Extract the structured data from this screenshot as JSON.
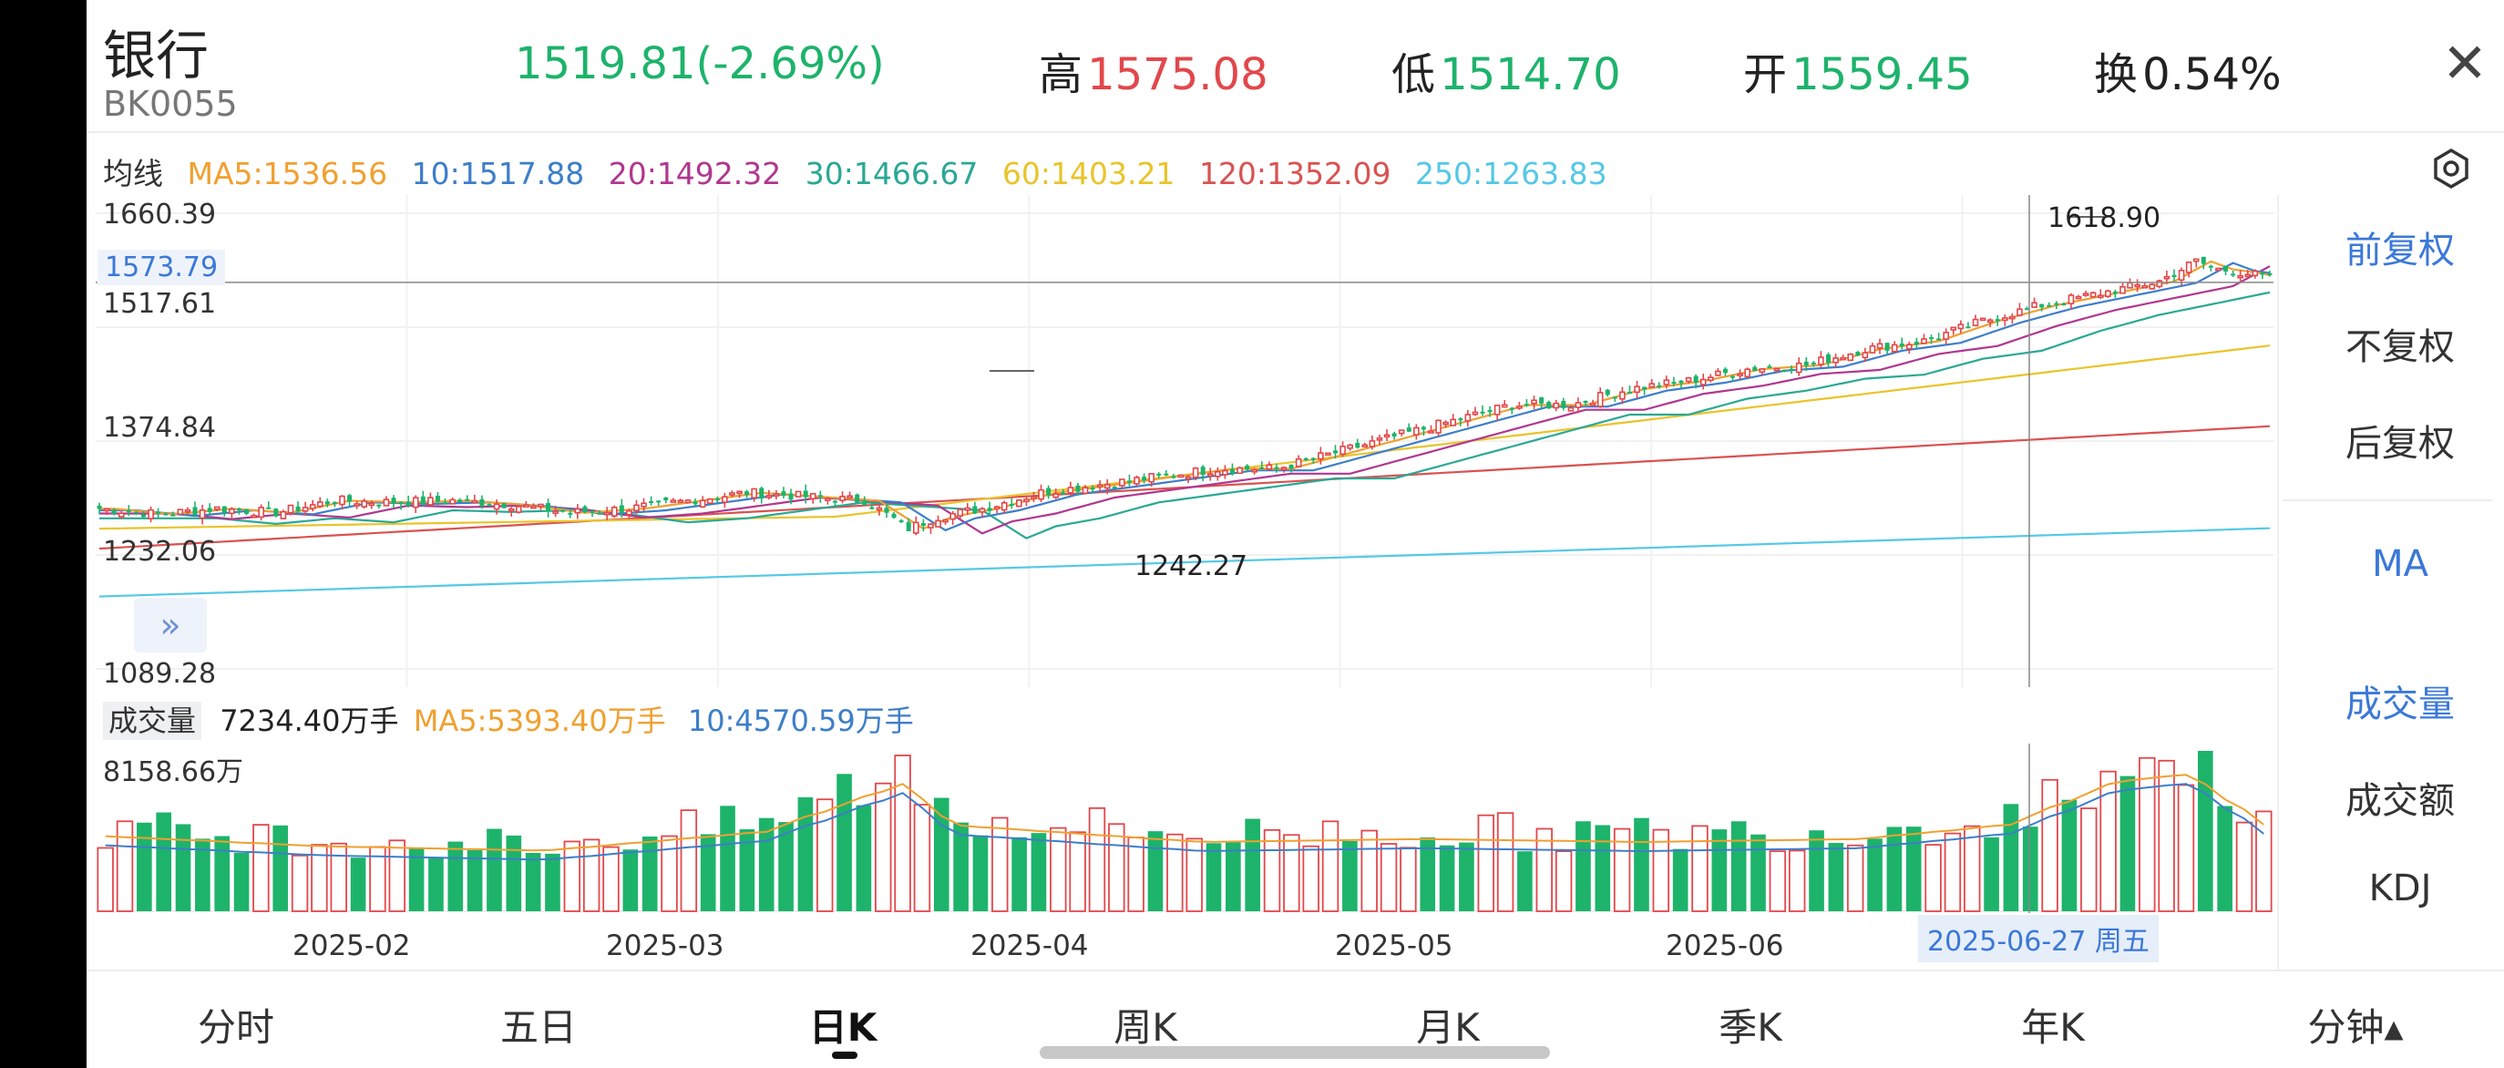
{
  "header": {
    "title": "银行",
    "code": "BK0055",
    "price_change": "1519.81(-2.69%)",
    "high_label": "高",
    "high_value": "1575.08",
    "low_label": "低",
    "low_value": "1514.70",
    "open_label": "开",
    "open_value": "1559.45",
    "turnover_label": "换",
    "turnover_value": "0.54%",
    "close_icon": "close-icon"
  },
  "ma_bar": {
    "label": "均线",
    "ma5": "MA5:1536.56",
    "ma10": "10:1517.88",
    "ma20": "20:1492.32",
    "ma30": "30:1466.67",
    "ma60": "60:1403.21",
    "ma120": "120:1352.09",
    "ma250": "250:1263.83",
    "settings_icon": "hexagon-settings-icon"
  },
  "colors": {
    "up": "#e2474b",
    "down": "#1db36b",
    "ma5": "#f0a030",
    "ma10": "#3d7ec9",
    "ma20": "#b0378f",
    "ma30": "#2aa894",
    "ma60": "#e9c42a",
    "ma120": "#d95250",
    "ma250": "#55c8e6",
    "accent": "#3b78d8"
  },
  "price_axis": [
    "1660.39",
    "1517.61",
    "1374.84",
    "1232.06",
    "1089.28"
  ],
  "crosshair_price": "1573.79",
  "annotations": {
    "high": "1618.90",
    "low": "1242.27"
  },
  "expand_icon": "double-chevron-right-icon",
  "volume_bar": {
    "label": "成交量",
    "value": "7234.40万手",
    "ma5": "MA5:5393.40万手",
    "ma10": "10:4570.59万手",
    "axis_max": "8158.66万"
  },
  "x_axis": [
    "2025-02",
    "2025-03",
    "2025-04",
    "2025-05",
    "2025-06"
  ],
  "crosshair_date": "2025-06-27 周五",
  "side_menu": {
    "adjust": [
      "前复权",
      "不复权",
      "后复权"
    ],
    "indicator_main": "MA",
    "indicator_sub": [
      "成交量",
      "成交额",
      "KDJ"
    ]
  },
  "tabs": [
    "分时",
    "五日",
    "日K",
    "周K",
    "月K",
    "季K",
    "年K",
    "分钟▴"
  ],
  "active_tab_index": 2,
  "chart_data": {
    "type": "candlestick",
    "title": "",
    "y_range": [
      1089.28,
      1660.39
    ],
    "volume_max_wan": 8158.66,
    "ma_series": [
      {
        "name": "MA5",
        "last": 1536.56
      },
      {
        "name": "MA10",
        "last": 1517.88
      },
      {
        "name": "MA20",
        "last": 1492.32
      },
      {
        "name": "MA30",
        "last": 1466.67
      },
      {
        "name": "MA60",
        "last": 1403.21
      },
      {
        "name": "MA120",
        "last": 1352.09
      },
      {
        "name": "MA250",
        "last": 1263.83
      }
    ],
    "close_trend": [
      [
        0,
        1290
      ],
      [
        8,
        1283
      ],
      [
        16,
        1290
      ],
      [
        24,
        1285
      ],
      [
        32,
        1300
      ],
      [
        40,
        1298
      ],
      [
        48,
        1300
      ],
      [
        56,
        1295
      ],
      [
        64,
        1285
      ],
      [
        72,
        1290
      ],
      [
        80,
        1300
      ],
      [
        88,
        1310
      ],
      [
        96,
        1305
      ],
      [
        104,
        1300
      ],
      [
        110,
        1265
      ],
      [
        114,
        1280
      ],
      [
        120,
        1290
      ],
      [
        128,
        1310
      ],
      [
        136,
        1320
      ],
      [
        144,
        1330
      ],
      [
        152,
        1340
      ],
      [
        160,
        1340
      ],
      [
        168,
        1360
      ],
      [
        176,
        1380
      ],
      [
        184,
        1400
      ],
      [
        192,
        1420
      ],
      [
        200,
        1420
      ],
      [
        208,
        1440
      ],
      [
        216,
        1450
      ],
      [
        224,
        1465
      ],
      [
        232,
        1470
      ],
      [
        240,
        1490
      ],
      [
        248,
        1500
      ],
      [
        256,
        1525
      ],
      [
        264,
        1545
      ],
      [
        272,
        1560
      ],
      [
        280,
        1575
      ],
      [
        285,
        1600
      ],
      [
        288,
        1590
      ],
      [
        292,
        1585
      ],
      [
        295,
        1578
      ]
    ],
    "volume_trend": [
      [
        0,
        0.52
      ],
      [
        30,
        0.45
      ],
      [
        60,
        0.42
      ],
      [
        90,
        0.55
      ],
      [
        110,
        0.9
      ],
      [
        115,
        0.6
      ],
      [
        150,
        0.48
      ],
      [
        180,
        0.5
      ],
      [
        210,
        0.48
      ],
      [
        240,
        0.5
      ],
      [
        260,
        0.6
      ],
      [
        275,
        0.9
      ],
      [
        285,
        0.95
      ],
      [
        295,
        0.6
      ]
    ]
  }
}
